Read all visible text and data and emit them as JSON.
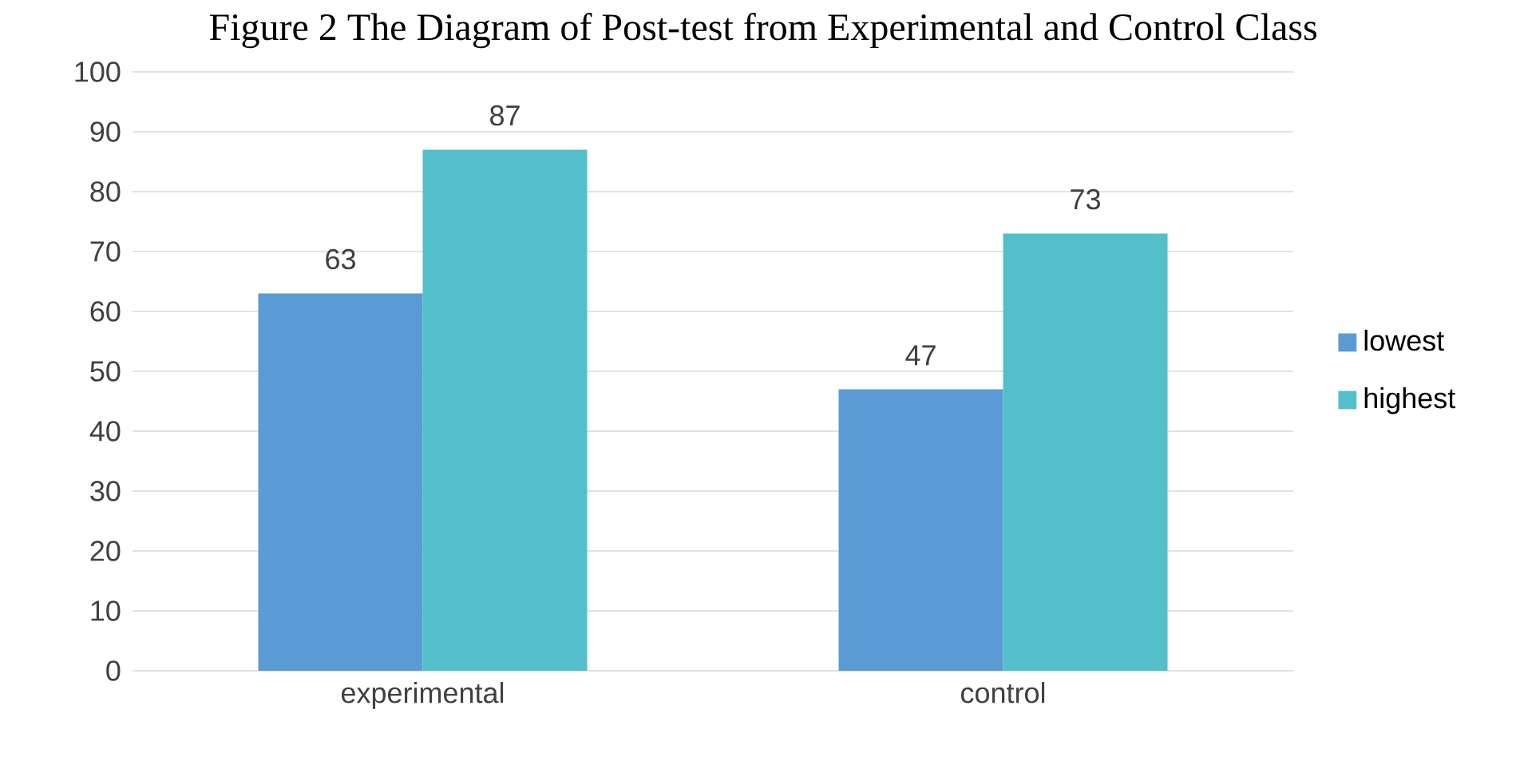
{
  "chart_data": {
    "type": "bar",
    "title": "Figure 2 The Diagram of Post-test from Experimental and Control Class",
    "categories": [
      "experimental",
      "control"
    ],
    "series": [
      {
        "name": "lowest",
        "color": "#5b9bd5",
        "values": [
          63,
          47
        ]
      },
      {
        "name": "highest",
        "color": "#53bfcb",
        "values": [
          87,
          73
        ]
      }
    ],
    "ylim": [
      0,
      100
    ],
    "yticks": [
      0,
      10,
      20,
      30,
      40,
      50,
      60,
      70,
      80,
      90,
      100
    ],
    "grid": "y",
    "legend": "right",
    "data_labels": true
  }
}
